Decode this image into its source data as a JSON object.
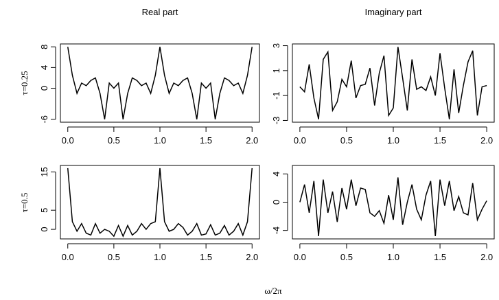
{
  "col_titles": [
    "Real part",
    "Imaginary part"
  ],
  "row_labels": [
    "τ=0.25",
    "τ=0.5"
  ],
  "xlabel": "ω/2π",
  "chart_data": [
    {
      "type": "line",
      "color": "#000000",
      "x": [
        0,
        0.05,
        0.1,
        0.15,
        0.2,
        0.25,
        0.3,
        0.35,
        0.4,
        0.45,
        0.5,
        0.55,
        0.6,
        0.65,
        0.7,
        0.75,
        0.8,
        0.85,
        0.9,
        0.95,
        1,
        1.05,
        1.1,
        1.15,
        1.2,
        1.25,
        1.3,
        1.35,
        1.4,
        1.45,
        1.5,
        1.55,
        1.6,
        1.65,
        1.7,
        1.75,
        1.8,
        1.85,
        1.9,
        1.95,
        2
      ],
      "values": [
        8,
        2.5,
        -1,
        1,
        0.5,
        1.5,
        2,
        -1,
        -6,
        1,
        0,
        1,
        -6,
        -1,
        2,
        1.5,
        0.5,
        1,
        -1,
        2.5,
        8,
        2.5,
        -1,
        1,
        0.5,
        1.5,
        2,
        -1,
        -6,
        1,
        0,
        1,
        -6,
        -1,
        2,
        1.5,
        0.5,
        1,
        -1,
        2.5,
        8
      ],
      "xlim": [
        -0.08,
        2.08
      ],
      "ylim": [
        -6.56,
        8.56
      ],
      "xticks": [
        {
          "value": 0,
          "label": "0.0"
        },
        {
          "value": 0.5,
          "label": "0.5"
        },
        {
          "value": 1,
          "label": "1.0"
        },
        {
          "value": 1.5,
          "label": "1.5"
        },
        {
          "value": 2,
          "label": "2.0"
        }
      ],
      "yticks": [
        -6,
        0,
        4,
        8
      ]
    },
    {
      "type": "line",
      "color": "#000000",
      "x": [
        0,
        0.05,
        0.1,
        0.15,
        0.2,
        0.25,
        0.3,
        0.35,
        0.4,
        0.45,
        0.5,
        0.55,
        0.6,
        0.65,
        0.7,
        0.75,
        0.8,
        0.85,
        0.9,
        0.95,
        1,
        1.05,
        1.1,
        1.15,
        1.2,
        1.25,
        1.3,
        1.35,
        1.4,
        1.45,
        1.5,
        1.55,
        1.6,
        1.65,
        1.7,
        1.75,
        1.8,
        1.85,
        1.9,
        1.95,
        2
      ],
      "values": [
        -0.3,
        -0.7,
        1.5,
        -1.2,
        -2.9,
        1.9,
        2.5,
        -2.2,
        -1.5,
        0.3,
        -0.3,
        1.8,
        -1.2,
        -0.2,
        -0.1,
        1.2,
        -1.8,
        0.8,
        2.2,
        -2.6,
        -2.0,
        2.9,
        0.4,
        -2.2,
        1.9,
        -0.5,
        -0.3,
        -0.6,
        0.5,
        -1.0,
        2.4,
        -0.4,
        -2.9,
        1.1,
        -2.4,
        -0.2,
        1.7,
        2.6,
        -2.6,
        -0.3,
        -0.2
      ],
      "xlim": [
        -0.08,
        2.08
      ],
      "ylim": [
        -3.14,
        3.14
      ],
      "xticks": [
        {
          "value": 0,
          "label": "0.0"
        },
        {
          "value": 0.5,
          "label": "0.5"
        },
        {
          "value": 1,
          "label": "1.0"
        },
        {
          "value": 1.5,
          "label": "1.5"
        },
        {
          "value": 2,
          "label": "2.0"
        }
      ],
      "yticks": [
        -3,
        -1,
        1,
        3
      ]
    },
    {
      "type": "line",
      "color": "#000000",
      "x": [
        0,
        0.05,
        0.1,
        0.15,
        0.2,
        0.25,
        0.3,
        0.35,
        0.4,
        0.45,
        0.5,
        0.55,
        0.6,
        0.65,
        0.7,
        0.75,
        0.8,
        0.85,
        0.9,
        0.95,
        1,
        1.05,
        1.1,
        1.15,
        1.2,
        1.25,
        1.3,
        1.35,
        1.4,
        1.45,
        1.5,
        1.55,
        1.6,
        1.65,
        1.7,
        1.75,
        1.8,
        1.85,
        1.9,
        1.95,
        2
      ],
      "values": [
        16,
        2,
        -0.5,
        1.5,
        -1,
        -1.5,
        1.5,
        -1,
        0,
        -0.5,
        -1.8,
        1,
        -1.8,
        1,
        -1.5,
        -0.5,
        1.5,
        0,
        1.5,
        2,
        16,
        2,
        -0.5,
        0,
        1.5,
        0.5,
        -1.5,
        -0.5,
        1.5,
        -1.5,
        -1.2,
        1.2,
        -1.5,
        -1,
        1,
        -1.5,
        -0.5,
        1.5,
        -1.5,
        2,
        16
      ],
      "xlim": [
        -0.08,
        2.08
      ],
      "ylim": [
        -2.5,
        16.7
      ],
      "xticks": [
        {
          "value": 0,
          "label": "0.0"
        },
        {
          "value": 0.5,
          "label": "0.5"
        },
        {
          "value": 1,
          "label": "1.0"
        },
        {
          "value": 1.5,
          "label": "1.5"
        },
        {
          "value": 2,
          "label": "2.0"
        }
      ],
      "yticks": [
        0,
        5,
        15
      ]
    },
    {
      "type": "line",
      "color": "#000000",
      "x": [
        0,
        0.05,
        0.1,
        0.15,
        0.2,
        0.25,
        0.3,
        0.35,
        0.4,
        0.45,
        0.5,
        0.55,
        0.6,
        0.65,
        0.7,
        0.75,
        0.8,
        0.85,
        0.9,
        0.95,
        1,
        1.05,
        1.1,
        1.15,
        1.2,
        1.25,
        1.3,
        1.35,
        1.4,
        1.45,
        1.5,
        1.55,
        1.6,
        1.65,
        1.7,
        1.75,
        1.8,
        1.85,
        1.9,
        1.95,
        2
      ],
      "values": [
        0,
        2.5,
        -1.5,
        3,
        -4.8,
        3.2,
        -1.5,
        1.5,
        -2.8,
        2,
        -1,
        3.2,
        -0.5,
        2,
        1.8,
        -1.5,
        -2,
        -1.2,
        -3,
        1,
        -2.5,
        3.5,
        -3.2,
        0,
        2.5,
        -1,
        -2.5,
        1,
        3,
        -4.8,
        3.2,
        -0.5,
        3,
        -1.2,
        0.8,
        -1.5,
        -1.8,
        2.7,
        -2.5,
        -1,
        0.2
      ],
      "xlim": [
        -0.08,
        2.08
      ],
      "ylim": [
        -5.2,
        5.2
      ],
      "xticks": [
        {
          "value": 0,
          "label": "0.0"
        },
        {
          "value": 0.5,
          "label": "0.5"
        },
        {
          "value": 1,
          "label": "1.0"
        },
        {
          "value": 1.5,
          "label": "1.5"
        },
        {
          "value": 2,
          "label": "2.0"
        }
      ],
      "yticks": [
        -4,
        0,
        4
      ]
    }
  ]
}
